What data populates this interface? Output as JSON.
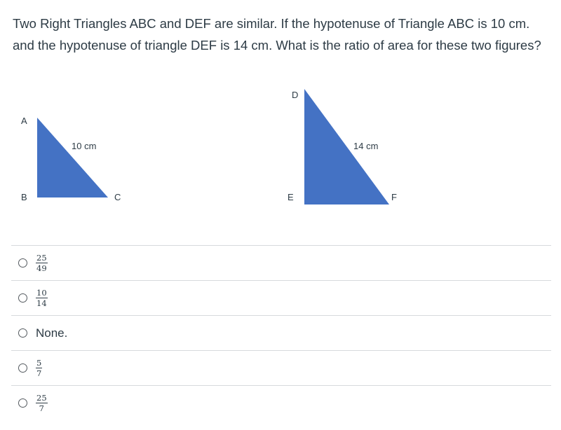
{
  "question": {
    "text": "Two Right Triangles ABC and DEF are similar. If the hypotenuse of Triangle ABC is 10 cm. and the hypotenuse of triangle DEF is 14 cm. What is the ratio of area for these two figures?"
  },
  "figure": {
    "fill_color": "#4472c4",
    "triangle_abc": {
      "labels": {
        "a": "A",
        "b": "B",
        "c": "C"
      },
      "hypotenuse_label": "10 cm"
    },
    "triangle_def": {
      "labels": {
        "d": "D",
        "e": "E",
        "f": "F"
      },
      "hypotenuse_label": "14 cm"
    }
  },
  "answers": [
    {
      "numerator": "25",
      "denominator": "49"
    },
    {
      "numerator": "10",
      "denominator": "14"
    },
    {
      "text": "None."
    },
    {
      "numerator": "5",
      "denominator": "7"
    },
    {
      "numerator": "25",
      "denominator": "7"
    }
  ]
}
